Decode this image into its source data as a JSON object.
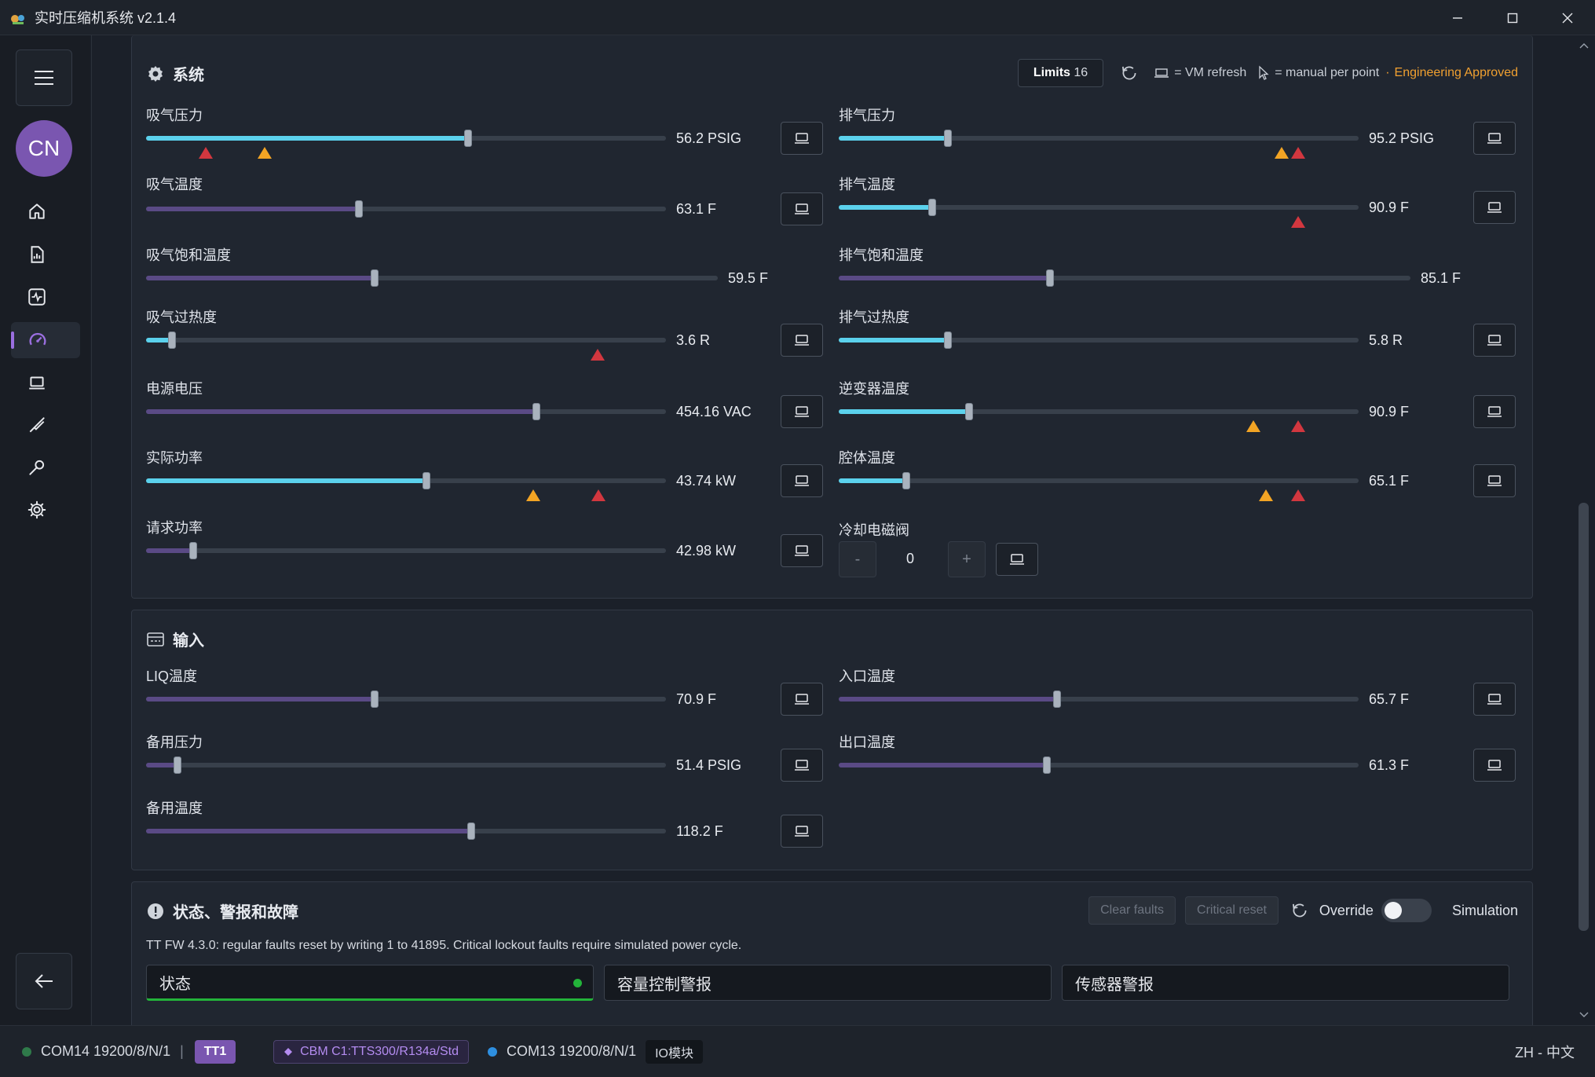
{
  "window": {
    "title": "实时压缩机系统 v2.1.4"
  },
  "rail": {
    "avatar_initials": "CN",
    "items": [
      {
        "name": "home-icon"
      },
      {
        "name": "report-icon"
      },
      {
        "name": "activity-icon"
      },
      {
        "name": "gauge-icon"
      },
      {
        "name": "laptop-icon"
      },
      {
        "name": "brush-icon"
      },
      {
        "name": "wrench-icon"
      },
      {
        "name": "gear-icon"
      }
    ],
    "active_index": 3
  },
  "system_panel": {
    "title": "系统",
    "limits_label": "Limits",
    "limits_count": "16",
    "legend_vm": "= VM refresh",
    "legend_manual": "= manual per point",
    "separator": "·",
    "approval": "Engineering Approved",
    "fields_left": [
      {
        "label": "吸气压力",
        "value": "56.2 PSIG",
        "fraction": 0.62,
        "color": "cyan",
        "markers": [
          {
            "type": "red",
            "pos": 0.115
          },
          {
            "type": "orange",
            "pos": 0.228
          }
        ],
        "button": true
      },
      {
        "label": "吸气温度",
        "value": "63.1 F",
        "fraction": 0.41,
        "color": "purple",
        "markers": [],
        "button": true
      },
      {
        "label": "吸气饱和温度",
        "value": "59.5 F",
        "fraction": 0.4,
        "color": "purple",
        "markers": [],
        "button": false
      },
      {
        "label": "吸气过热度",
        "value": "3.6 R",
        "fraction": 0.05,
        "color": "cyan",
        "markers": [
          {
            "type": "red",
            "pos": 0.868
          }
        ],
        "button": true
      },
      {
        "label": "电源电压",
        "value": "454.16 VAC",
        "fraction": 0.75,
        "color": "purple",
        "markers": [],
        "button": true
      },
      {
        "label": "实际功率",
        "value": "43.74 kW",
        "fraction": 0.54,
        "color": "cyan",
        "markers": [
          {
            "type": "orange",
            "pos": 0.745
          },
          {
            "type": "red",
            "pos": 0.87
          }
        ],
        "button": true
      },
      {
        "label": "请求功率",
        "value": "42.98 kW",
        "fraction": 0.09,
        "color": "purple",
        "markers": [],
        "button": true
      }
    ],
    "fields_right": [
      {
        "label": "排气压力",
        "value": "95.2 PSIG",
        "fraction": 0.21,
        "color": "cyan",
        "markers": [
          {
            "type": "orange",
            "pos": 0.852
          },
          {
            "type": "red",
            "pos": 0.884
          }
        ],
        "button": true
      },
      {
        "label": "排气温度",
        "value": "90.9 F",
        "fraction": 0.18,
        "color": "cyan",
        "markers": [
          {
            "type": "red",
            "pos": 0.884
          }
        ],
        "button": true
      },
      {
        "label": "排气饱和温度",
        "value": "85.1 F",
        "fraction": 0.37,
        "color": "purple",
        "markers": [],
        "button": false
      },
      {
        "label": "排气过热度",
        "value": "5.8 R",
        "fraction": 0.21,
        "color": "cyan",
        "markers": [],
        "button": true
      },
      {
        "label": "逆变器温度",
        "value": "90.9 F",
        "fraction": 0.25,
        "color": "cyan",
        "markers": [
          {
            "type": "orange",
            "pos": 0.798
          },
          {
            "type": "red",
            "pos": 0.884
          }
        ],
        "button": true
      },
      {
        "label": "腔体温度",
        "value": "65.1 F",
        "fraction": 0.13,
        "color": "cyan",
        "markers": [
          {
            "type": "orange",
            "pos": 0.822
          },
          {
            "type": "red",
            "pos": 0.884
          }
        ],
        "button": true
      }
    ],
    "valve": {
      "label": "冷却电磁阀",
      "minus": "-",
      "value": "0",
      "plus": "+"
    }
  },
  "input_panel": {
    "title": "输入",
    "fields_left": [
      {
        "label": "LIQ温度",
        "value": "70.9 F",
        "fraction": 0.44
      },
      {
        "label": "备用压力",
        "value": "51.4 PSIG",
        "fraction": 0.06
      },
      {
        "label": "备用温度",
        "value": "118.2 F",
        "fraction": 0.625
      }
    ],
    "fields_right": [
      {
        "label": "入口温度",
        "value": "65.7 F",
        "fraction": 0.42
      },
      {
        "label": "出口温度",
        "value": "61.3 F",
        "fraction": 0.4
      }
    ]
  },
  "fault_panel": {
    "title": "状态、警报和故障",
    "clear_faults": "Clear faults",
    "critical_reset": "Critical reset",
    "override_label": "Override",
    "simulation_label": "Simulation",
    "note": "TT FW 4.3.0: regular faults reset by writing 1 to 41895. Critical lockout faults require simulated power cycle.",
    "boxes": [
      "状态",
      "容量控制警报",
      "传感器警报"
    ]
  },
  "statusbar": {
    "port1": "COM14 19200/8/N/1",
    "divider": "|",
    "tt_tag": "TT1",
    "cbm_tag": "CBM C1:TTS300/R134a/Std",
    "port2": "COM13 19200/8/N/1",
    "io_tag": "IO模块",
    "locale": "ZH - 中文"
  },
  "colors": {
    "accent_cyan": "#5bd1ec",
    "accent_purple": "#7a56b0",
    "approved": "#f0a030",
    "alarm_red": "#d2373f",
    "alarm_orange": "#f2a424",
    "ok_green": "#23b33a"
  }
}
